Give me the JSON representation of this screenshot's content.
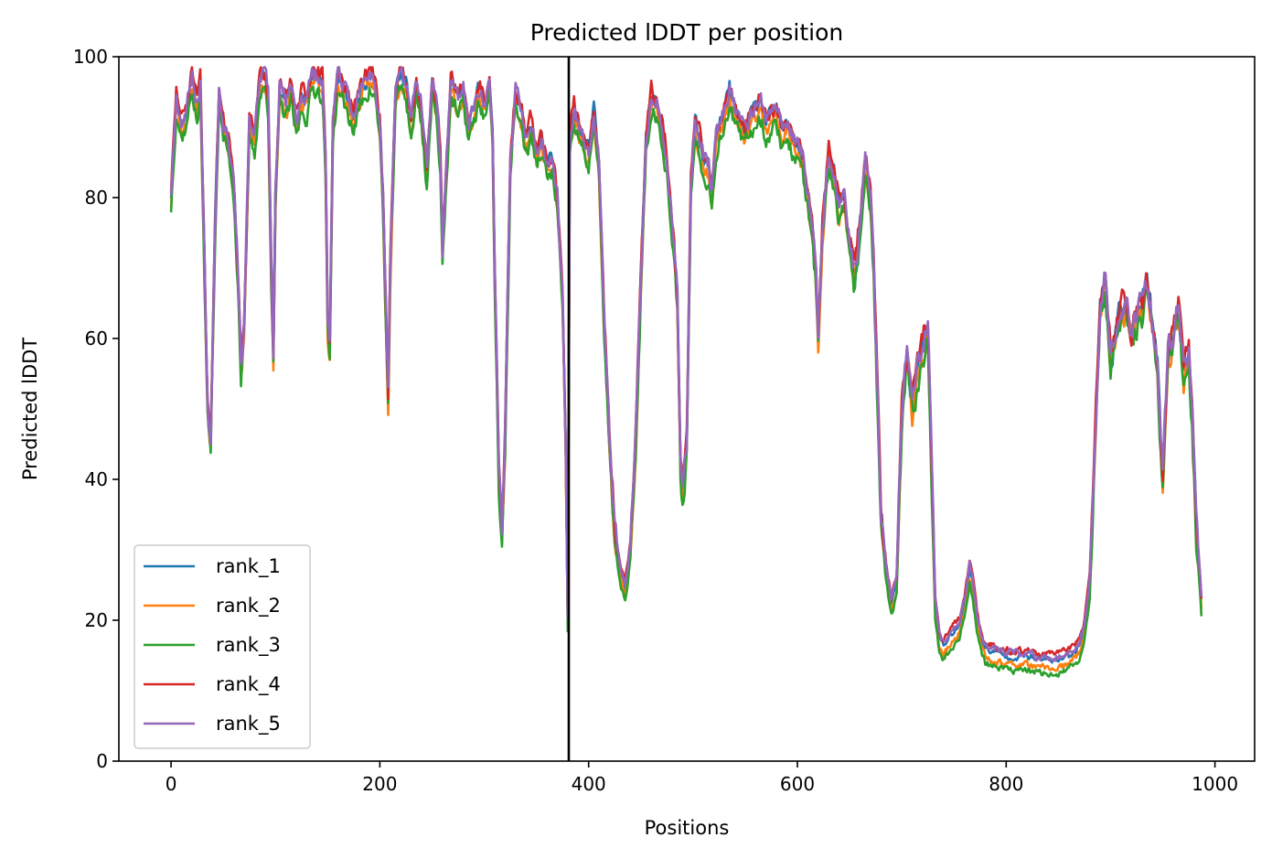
{
  "chart_data": {
    "type": "line",
    "title": "Predicted lDDT per position",
    "xlabel": "Positions",
    "ylabel": "Predicted lDDT",
    "xlim": [
      -50,
      1038
    ],
    "ylim": [
      0,
      100
    ],
    "x_ticks": [
      0,
      200,
      400,
      600,
      800,
      1000
    ],
    "y_ticks": [
      0,
      20,
      40,
      60,
      80,
      100
    ],
    "grid": false,
    "legend_position": "lower-left",
    "vertical_line": {
      "x": 381,
      "color": "#000000"
    },
    "n_positions": 988,
    "base_profile": [
      [
        0,
        80
      ],
      [
        5,
        94
      ],
      [
        10,
        90
      ],
      [
        15,
        92
      ],
      [
        20,
        97
      ],
      [
        25,
        92
      ],
      [
        28,
        96
      ],
      [
        32,
        70
      ],
      [
        35,
        50
      ],
      [
        38,
        46
      ],
      [
        42,
        75
      ],
      [
        46,
        95
      ],
      [
        50,
        90
      ],
      [
        55,
        88
      ],
      [
        60,
        82
      ],
      [
        64,
        70
      ],
      [
        67,
        56
      ],
      [
        70,
        62
      ],
      [
        75,
        90
      ],
      [
        80,
        88
      ],
      [
        85,
        96
      ],
      [
        90,
        97
      ],
      [
        93,
        94
      ],
      [
        96,
        70
      ],
      [
        98,
        57
      ],
      [
        100,
        80
      ],
      [
        104,
        95
      ],
      [
        110,
        93
      ],
      [
        115,
        95
      ],
      [
        120,
        90
      ],
      [
        125,
        94
      ],
      [
        130,
        93
      ],
      [
        135,
        97
      ],
      [
        140,
        97
      ],
      [
        145,
        96
      ],
      [
        148,
        85
      ],
      [
        150,
        62
      ],
      [
        152,
        58
      ],
      [
        155,
        90
      ],
      [
        160,
        97
      ],
      [
        165,
        95
      ],
      [
        170,
        93
      ],
      [
        175,
        91
      ],
      [
        180,
        94
      ],
      [
        185,
        96
      ],
      [
        190,
        97
      ],
      [
        195,
        96
      ],
      [
        200,
        90
      ],
      [
        203,
        80
      ],
      [
        206,
        62
      ],
      [
        208,
        52
      ],
      [
        210,
        70
      ],
      [
        215,
        95
      ],
      [
        220,
        97
      ],
      [
        225,
        96
      ],
      [
        230,
        90
      ],
      [
        235,
        96
      ],
      [
        240,
        92
      ],
      [
        245,
        83
      ],
      [
        250,
        96
      ],
      [
        255,
        92
      ],
      [
        258,
        85
      ],
      [
        260,
        72
      ],
      [
        263,
        82
      ],
      [
        268,
        96
      ],
      [
        275,
        93
      ],
      [
        280,
        95
      ],
      [
        285,
        90
      ],
      [
        290,
        92
      ],
      [
        295,
        95
      ],
      [
        300,
        93
      ],
      [
        305,
        96
      ],
      [
        308,
        88
      ],
      [
        310,
        70
      ],
      [
        314,
        40
      ],
      [
        317,
        32
      ],
      [
        320,
        45
      ],
      [
        325,
        85
      ],
      [
        330,
        95
      ],
      [
        335,
        92
      ],
      [
        340,
        88
      ],
      [
        345,
        90
      ],
      [
        350,
        86
      ],
      [
        355,
        88
      ],
      [
        360,
        84
      ],
      [
        365,
        85
      ],
      [
        370,
        80
      ],
      [
        375,
        65
      ],
      [
        378,
        45
      ],
      [
        380,
        20
      ],
      [
        382,
        88
      ],
      [
        386,
        92
      ],
      [
        390,
        90
      ],
      [
        395,
        88
      ],
      [
        400,
        86
      ],
      [
        405,
        92
      ],
      [
        410,
        84
      ],
      [
        415,
        62
      ],
      [
        420,
        45
      ],
      [
        425,
        32
      ],
      [
        430,
        27
      ],
      [
        435,
        24
      ],
      [
        440,
        30
      ],
      [
        445,
        45
      ],
      [
        450,
        68
      ],
      [
        455,
        88
      ],
      [
        460,
        94
      ],
      [
        465,
        93
      ],
      [
        470,
        90
      ],
      [
        475,
        85
      ],
      [
        480,
        75
      ],
      [
        485,
        65
      ],
      [
        488,
        42
      ],
      [
        490,
        38
      ],
      [
        494,
        45
      ],
      [
        498,
        82
      ],
      [
        502,
        90
      ],
      [
        506,
        88
      ],
      [
        510,
        85
      ],
      [
        515,
        84
      ],
      [
        518,
        80
      ],
      [
        522,
        88
      ],
      [
        526,
        90
      ],
      [
        530,
        92
      ],
      [
        535,
        95
      ],
      [
        540,
        92
      ],
      [
        545,
        90
      ],
      [
        550,
        89
      ],
      [
        555,
        91
      ],
      [
        560,
        92
      ],
      [
        565,
        93
      ],
      [
        570,
        90
      ],
      [
        575,
        91
      ],
      [
        580,
        92
      ],
      [
        585,
        89
      ],
      [
        590,
        90
      ],
      [
        595,
        88
      ],
      [
        600,
        87
      ],
      [
        605,
        85
      ],
      [
        610,
        80
      ],
      [
        615,
        74
      ],
      [
        618,
        68
      ],
      [
        620,
        60
      ],
      [
        624,
        75
      ],
      [
        630,
        86
      ],
      [
        635,
        83
      ],
      [
        640,
        78
      ],
      [
        645,
        80
      ],
      [
        650,
        72
      ],
      [
        655,
        68
      ],
      [
        660,
        76
      ],
      [
        665,
        85
      ],
      [
        670,
        80
      ],
      [
        673,
        70
      ],
      [
        676,
        55
      ],
      [
        680,
        35
      ],
      [
        685,
        27
      ],
      [
        690,
        22
      ],
      [
        695,
        25
      ],
      [
        700,
        48
      ],
      [
        705,
        58
      ],
      [
        710,
        50
      ],
      [
        715,
        55
      ],
      [
        720,
        58
      ],
      [
        725,
        62
      ],
      [
        728,
        45
      ],
      [
        732,
        22
      ],
      [
        736,
        17
      ],
      [
        740,
        16
      ],
      [
        745,
        17
      ],
      [
        750,
        18
      ],
      [
        755,
        19
      ],
      [
        760,
        22
      ],
      [
        765,
        27
      ],
      [
        768,
        25
      ],
      [
        772,
        20
      ],
      [
        776,
        17
      ],
      [
        780,
        15.5
      ],
      [
        790,
        15
      ],
      [
        800,
        14.5
      ],
      [
        810,
        14.5
      ],
      [
        820,
        14.5
      ],
      [
        830,
        14
      ],
      [
        840,
        14
      ],
      [
        850,
        14
      ],
      [
        860,
        14.5
      ],
      [
        870,
        16
      ],
      [
        875,
        19
      ],
      [
        880,
        25
      ],
      [
        885,
        45
      ],
      [
        890,
        65
      ],
      [
        895,
        68
      ],
      [
        900,
        57
      ],
      [
        905,
        60
      ],
      [
        910,
        64
      ],
      [
        915,
        65
      ],
      [
        920,
        60
      ],
      [
        925,
        63
      ],
      [
        930,
        64
      ],
      [
        935,
        68
      ],
      [
        940,
        62
      ],
      [
        945,
        55
      ],
      [
        948,
        45
      ],
      [
        950,
        40
      ],
      [
        955,
        58
      ],
      [
        960,
        60
      ],
      [
        965,
        64
      ],
      [
        970,
        55
      ],
      [
        975,
        58
      ],
      [
        978,
        50
      ],
      [
        982,
        33
      ],
      [
        986,
        25
      ],
      [
        988,
        20
      ]
    ],
    "series": [
      {
        "name": "rank_1",
        "color": "#1f77b4",
        "offset": 0.4,
        "seed": 11
      },
      {
        "name": "rank_2",
        "color": "#ff7f0e",
        "offset": -0.8,
        "seed": 23
      },
      {
        "name": "rank_3",
        "color": "#2ca02c",
        "offset": -1.6,
        "seed": 37
      },
      {
        "name": "rank_4",
        "color": "#d62728",
        "offset": 1.2,
        "seed": 51
      },
      {
        "name": "rank_5",
        "color": "#9467bd",
        "offset": 0.8,
        "seed": 67
      }
    ]
  }
}
